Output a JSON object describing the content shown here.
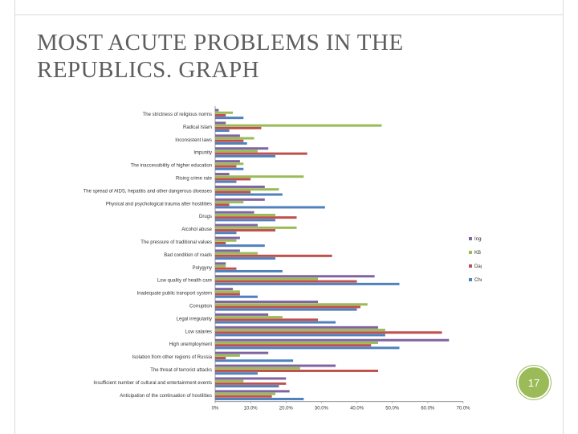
{
  "slide": {
    "title": "MOST ACUTE PROBLEMS IN THE REPUBLICS. GRAPH",
    "page_number": "17"
  },
  "colors": {
    "Ingushetia": "#8064a2",
    "KB": "#9bbb59",
    "Dagestan": "#c0504d",
    "Chechnya": "#4f81bd",
    "badge": "#9bbb59"
  },
  "chart_data": {
    "type": "bar",
    "orientation": "horizontal",
    "title": "",
    "xlabel": "",
    "ylabel": "",
    "xlim": [
      0,
      70
    ],
    "x_ticks": [
      "0%",
      "10.0%",
      "20.0%",
      "30.0%",
      "40.0%",
      "50.0%",
      "60.0%",
      "70.0%"
    ],
    "grid": false,
    "legend_position": "right",
    "categories": [
      "The strictness of religious norms",
      "Radical Islam",
      "Inconsistent laws",
      "Impunity",
      "The inaccessibility of higher education",
      "Rising crime rate",
      "The spread of AIDS, hepatitis and other dangerous diseases",
      "Physical and psychological trauma after hostilities",
      "Drugs",
      "Alcohol abuse",
      "The pressure of traditional values",
      "Bad condition of roads",
      "Polygyny",
      "Low quality of health care",
      "Inadequate public transport system",
      "Corruption",
      "Legal irregularity",
      "Low salaries",
      "High unemployment",
      "Isolation from other regions of Russia",
      "The threat of terrorist attacks",
      "Insufficient number of cultural and entertainment events",
      "Anticipation of the continuation of hostilities"
    ],
    "series": [
      {
        "name": "Ingushetia",
        "values": [
          1,
          3,
          7,
          15,
          7,
          4,
          14,
          14,
          11,
          12,
          7,
          7,
          3,
          45,
          5,
          29,
          15,
          46,
          66,
          15,
          34,
          20,
          21
        ]
      },
      {
        "name": "KB",
        "values": [
          5,
          47,
          11,
          12,
          8,
          25,
          18,
          8,
          17,
          23,
          6,
          12,
          3,
          29,
          7,
          43,
          19,
          48,
          46,
          7,
          24,
          8,
          17
        ]
      },
      {
        "name": "Dagestan",
        "values": [
          3,
          13,
          8,
          26,
          6,
          10,
          10,
          4,
          23,
          17,
          3,
          33,
          6,
          40,
          7,
          41,
          29,
          64,
          44,
          3,
          46,
          20,
          16
        ]
      },
      {
        "name": "Chechnya",
        "values": [
          8,
          4,
          9,
          17,
          8,
          6,
          19,
          31,
          17,
          6,
          14,
          17,
          19,
          52,
          12,
          40,
          34,
          48,
          52,
          22,
          12,
          18,
          25
        ]
      }
    ]
  }
}
